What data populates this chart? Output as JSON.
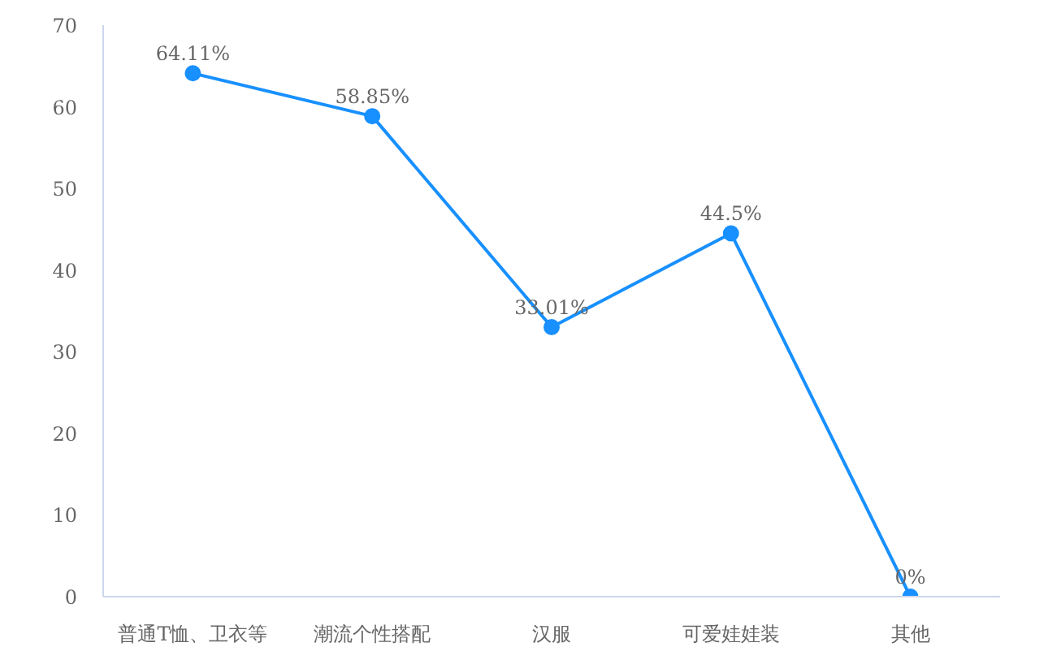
{
  "chart_data": {
    "type": "line",
    "categories": [
      "普通T恤、卫衣等",
      "潮流个性搭配",
      "汉服",
      "可爱娃娃装",
      "其他"
    ],
    "series": [
      {
        "color": "#1890ff",
        "values": [
          64.11,
          58.85,
          33.01,
          44.5,
          0
        ],
        "value_labels": [
          "64.11%",
          "58.85%",
          "33.01%",
          "44.5%",
          "0%"
        ]
      }
    ],
    "ylim": [
      0,
      70
    ],
    "yticks": [
      0,
      10,
      20,
      30,
      40,
      50,
      60,
      70
    ],
    "grid": false,
    "marker": "circle",
    "line_style": "solid"
  }
}
